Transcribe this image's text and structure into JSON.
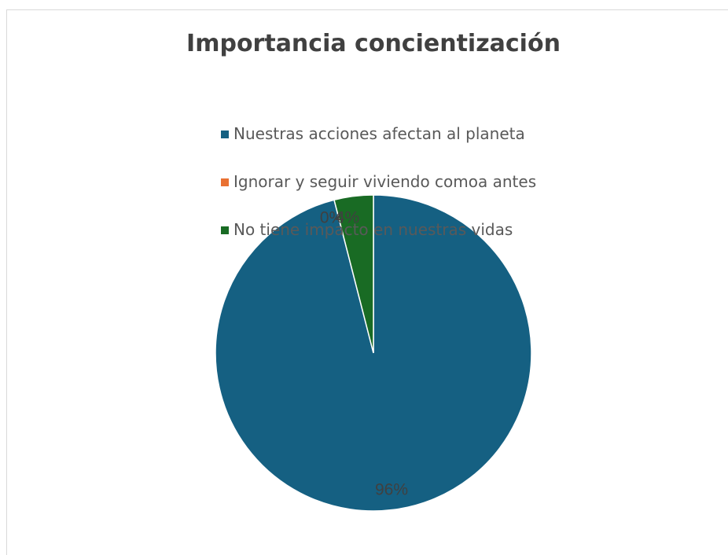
{
  "chart_data": {
    "type": "pie",
    "title": "Importancia concientización",
    "categories": [
      "Nuestras acciones afectan al planeta",
      "Ignorar y seguir viviendo comoa antes",
      "No tiene impacto en nuestras vidas"
    ],
    "values": [
      96,
      0,
      4
    ],
    "data_labels": [
      "96%",
      "0%",
      "4%"
    ],
    "colors": [
      "#156082",
      "#e97132",
      "#196b24"
    ],
    "legend_placement": "top"
  }
}
